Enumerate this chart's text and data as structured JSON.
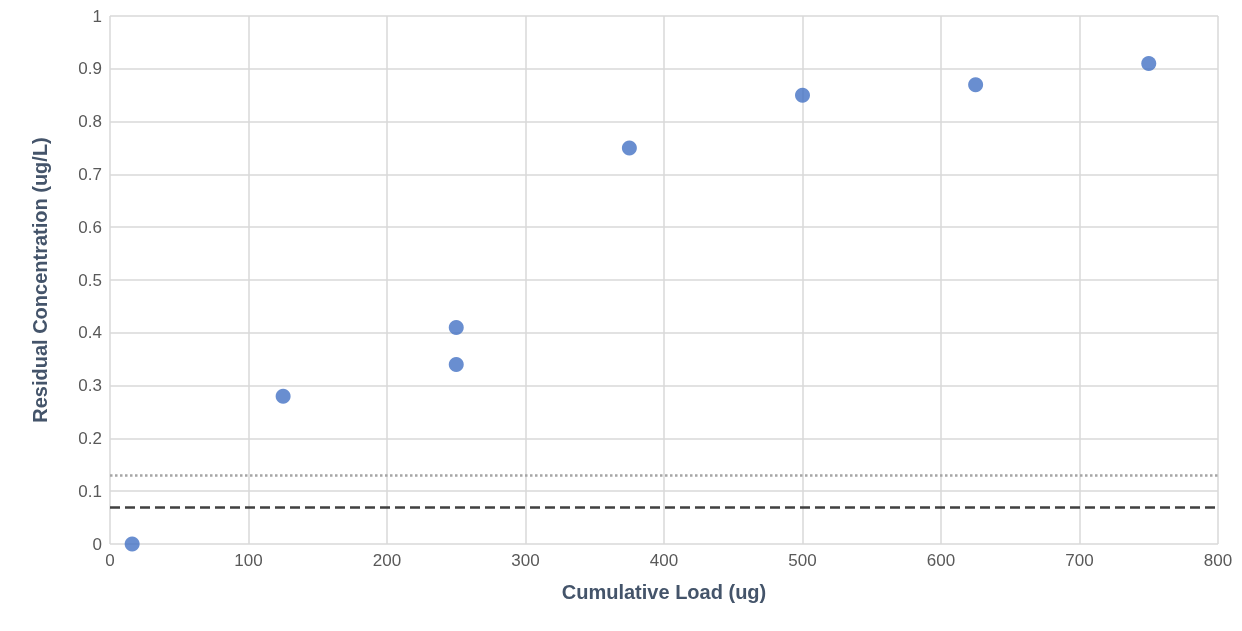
{
  "chart_data": {
    "type": "scatter",
    "xlabel": "Cumulative Load (ug)",
    "ylabel": "Residual Concentration (ug/L)",
    "x": [
      16,
      125,
      250,
      250,
      375,
      500,
      625,
      750
    ],
    "series": [
      {
        "color": "#4472c4",
        "values": [
          0,
          0.28,
          0.41,
          0.34,
          0.75,
          0.85,
          0.87,
          0.91
        ]
      }
    ],
    "xlim": [
      0,
      800
    ],
    "xticks": [
      0,
      100,
      200,
      300,
      400,
      500,
      600,
      700,
      800
    ],
    "ylim": [
      0,
      1
    ],
    "yticks": [
      0,
      0.1,
      0.2,
      0.3,
      0.4,
      0.5,
      0.6,
      0.7,
      0.8,
      0.9,
      1
    ],
    "grid": true,
    "marker": "circle",
    "ref_lines": [
      {
        "axis": "y",
        "value": 0.13,
        "color": "#a6a6a6",
        "line_style": "dotted"
      },
      {
        "axis": "y",
        "value": 0.07,
        "color": "#404040",
        "line_style": "dashed"
      }
    ]
  }
}
